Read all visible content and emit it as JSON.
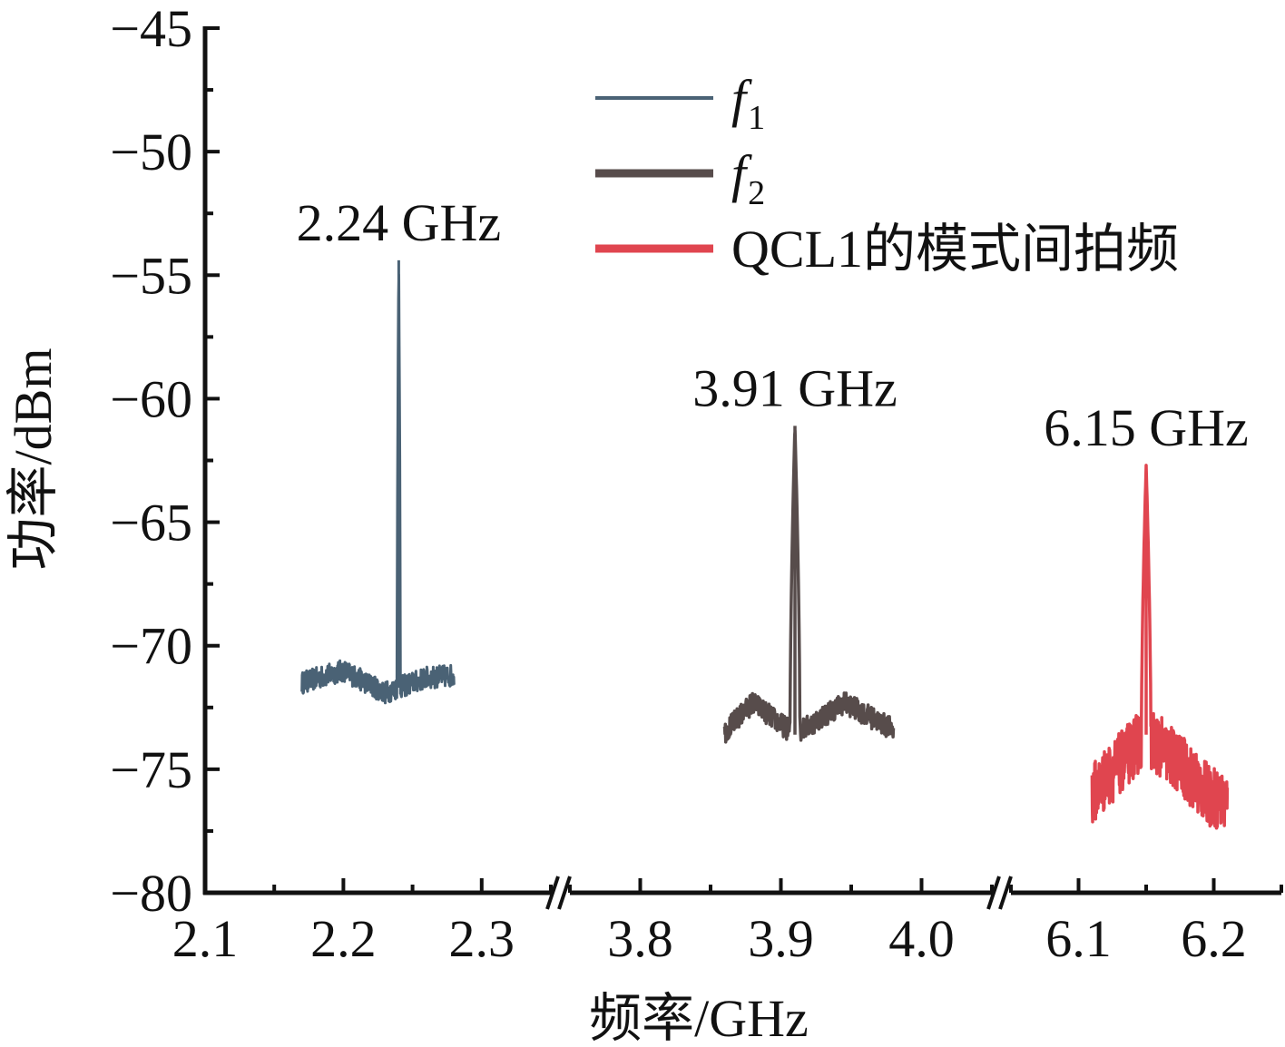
{
  "chart_data": {
    "type": "line",
    "title": "",
    "xlabel": "频率/GHz",
    "ylabel": "功率/dBm",
    "ylim": [
      -80,
      -45
    ],
    "yticks": [
      "−45",
      "−50",
      "−55",
      "−60",
      "−65",
      "−70",
      "−75",
      "−80"
    ],
    "broken_x_axis": true,
    "x_segments": [
      {
        "range": [
          2.1,
          2.35
        ],
        "ticks": [
          "2.1",
          "2.2",
          "2.3"
        ]
      },
      {
        "range": [
          3.75,
          4.05
        ],
        "ticks": [
          "3.8",
          "3.9",
          "4.0"
        ]
      },
      {
        "range": [
          6.05,
          6.25
        ],
        "ticks": [
          "6.1",
          "6.2"
        ]
      }
    ],
    "legend": {
      "placement": "top-right"
    },
    "series": [
      {
        "name": "f",
        "name_sub": "1",
        "color": "#4a6275",
        "segment": 0,
        "x_range": [
          2.17,
          2.28
        ],
        "peak_x": 2.24,
        "peak_y": -54.4,
        "baseline": [
          {
            "x": 2.17,
            "y": -71.5
          },
          {
            "x": 2.2,
            "y": -71.0
          },
          {
            "x": 2.23,
            "y": -71.9
          },
          {
            "x": 2.26,
            "y": -71.3
          },
          {
            "x": 2.28,
            "y": -71.2
          }
        ]
      },
      {
        "name": "f",
        "name_sub": "2",
        "color": "#574c4b",
        "segment": 1,
        "x_range": [
          3.86,
          3.98
        ],
        "peak_x": 3.91,
        "peak_y": -61.1,
        "baseline": [
          {
            "x": 3.86,
            "y": -73.5
          },
          {
            "x": 3.88,
            "y": -72.3
          },
          {
            "x": 3.91,
            "y": -73.6
          },
          {
            "x": 3.945,
            "y": -72.3
          },
          {
            "x": 3.98,
            "y": -73.4
          }
        ]
      },
      {
        "name": "QCL1的模式间拍频",
        "name_sub": "",
        "color": "#e0454f",
        "segment": 2,
        "x_range": [
          6.11,
          6.21
        ],
        "peak_x": 6.15,
        "peak_y": -62.7,
        "baseline": [
          {
            "x": 6.11,
            "y": -76.0
          },
          {
            "x": 6.13,
            "y": -74.8
          },
          {
            "x": 6.15,
            "y": -73.6
          },
          {
            "x": 6.175,
            "y": -74.8
          },
          {
            "x": 6.195,
            "y": -76.0
          },
          {
            "x": 6.21,
            "y": -76.4
          }
        ]
      }
    ],
    "annotations": [
      {
        "text": "2.24 GHz",
        "x": 2.24,
        "y": -54.4
      },
      {
        "text": "3.91 GHz",
        "x": 3.91,
        "y": -61.1
      },
      {
        "text": "6.15 GHz",
        "x": 6.15,
        "y": -62.7
      }
    ]
  }
}
